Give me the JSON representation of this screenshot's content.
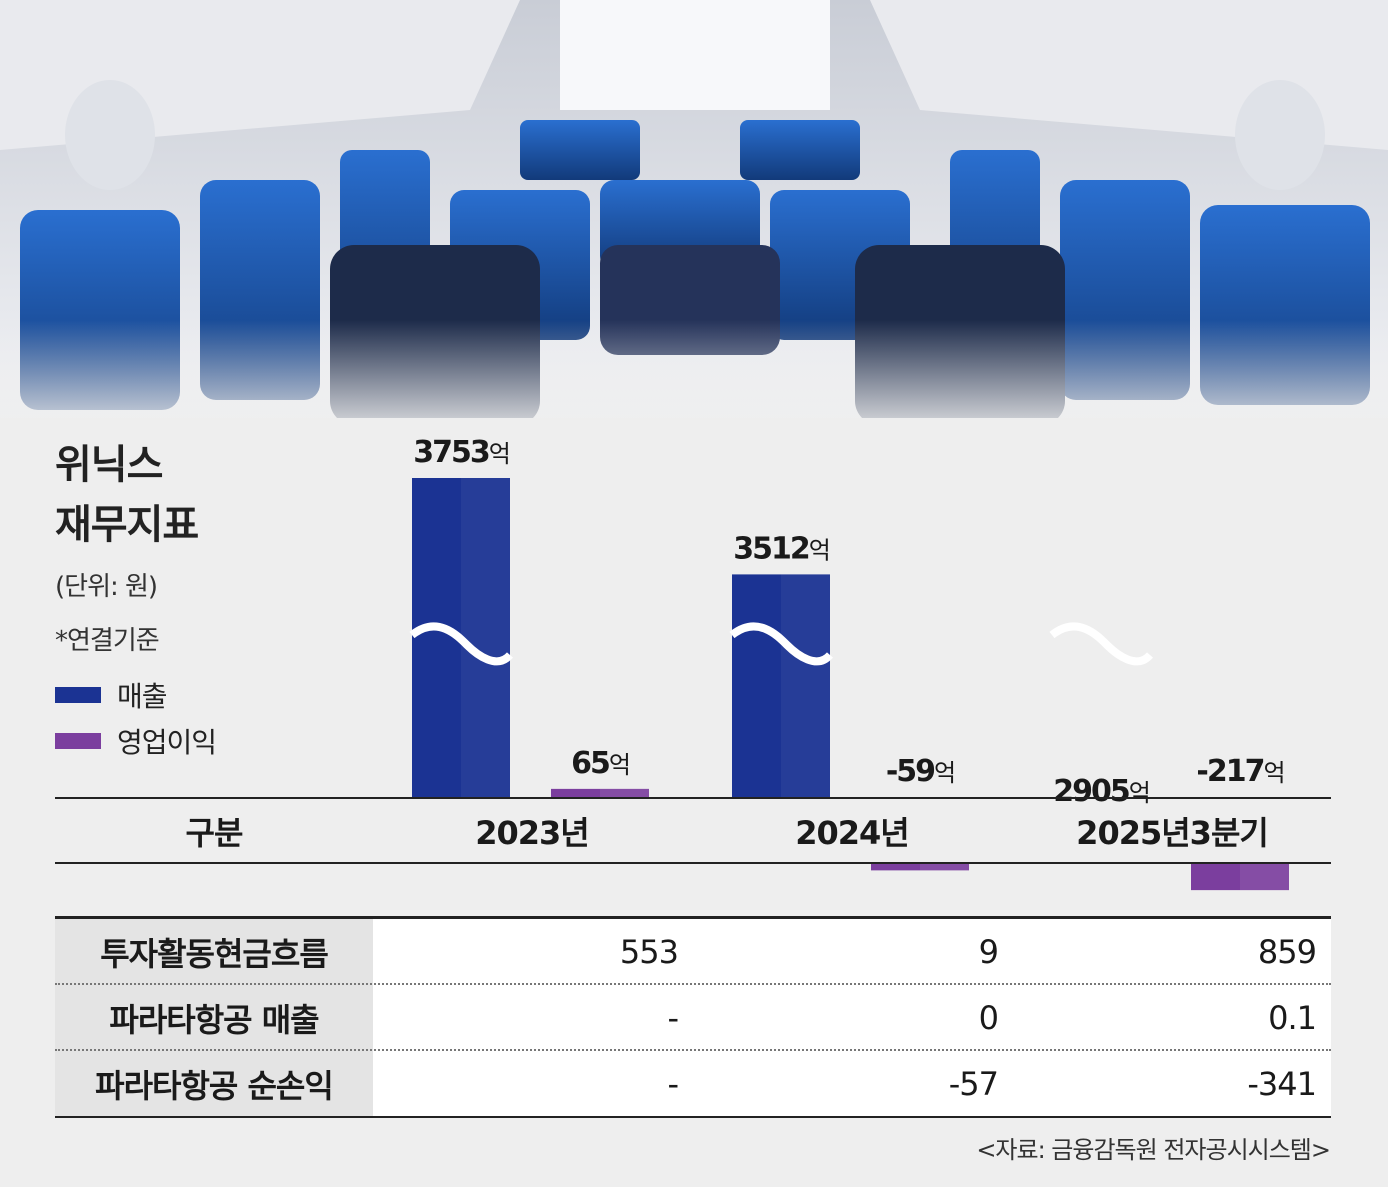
{
  "title_lines": [
    "위닉스",
    "재무지표"
  ],
  "unit_note": "(단위: 원)",
  "basis_note": "*연결기준",
  "legend": [
    {
      "label": "매출",
      "color": "#1b3393"
    },
    {
      "label": "영업이익",
      "color": "#7b3e9e"
    }
  ],
  "chart_data": {
    "type": "bar",
    "axis_break": true,
    "categories": [
      "2023년",
      "2024년",
      "2025년3분기"
    ],
    "series": [
      {
        "name": "매출",
        "values": [
          3753,
          3512,
          2905
        ],
        "labels": [
          "3753",
          "3512",
          "2905"
        ],
        "color": "#1b3393"
      },
      {
        "name": "영업이익",
        "values": [
          65,
          -59,
          -217
        ],
        "labels": [
          "65",
          "-59",
          "-217"
        ],
        "color": "#7b3e9e"
      }
    ],
    "value_unit": "억"
  },
  "table": {
    "header": "구분",
    "rows": [
      {
        "label": "투자활동현금흐름",
        "values": [
          "553",
          "9",
          "859"
        ]
      },
      {
        "label": "파라타항공 매출",
        "values": [
          "-",
          "0",
          "0.1"
        ]
      },
      {
        "label": "파라타항공 순손익",
        "values": [
          "-",
          "-57",
          "-341"
        ]
      }
    ]
  },
  "source": "<자료: 금융감독원 전자공시시스템>"
}
